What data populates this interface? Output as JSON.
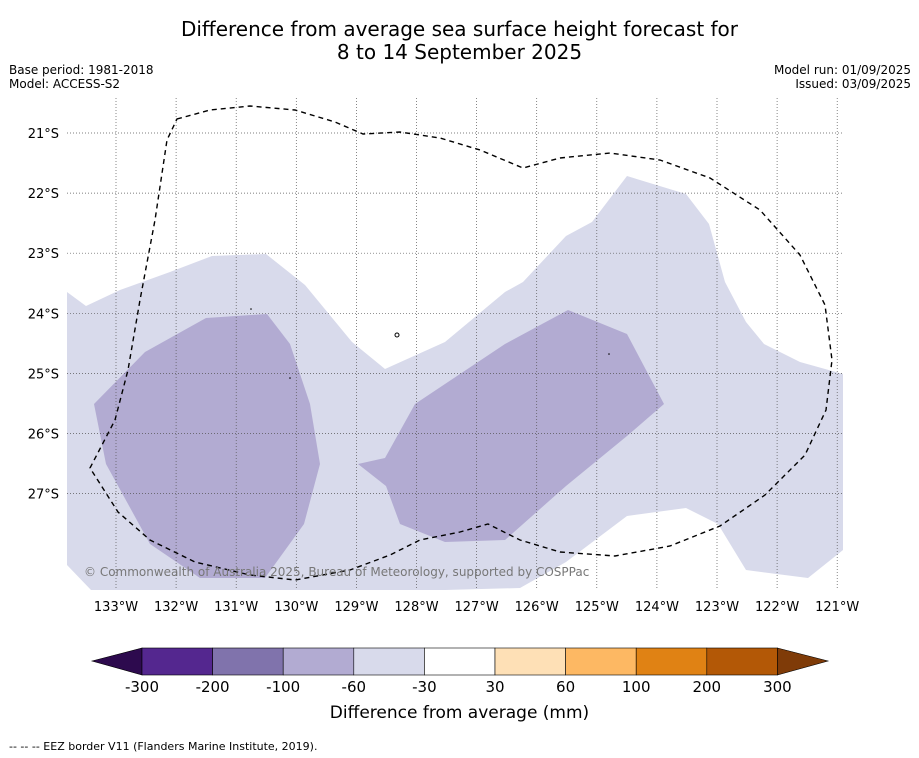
{
  "title_line1": "Difference from average sea surface height forecast for",
  "title_line2": "8 to 14 September 2025",
  "base_period": "Base period: 1981-2018",
  "model": "Model: ACCESS-S2",
  "model_run": "Model run: 01/09/2025",
  "issued": "Issued: 03/09/2025",
  "copyright": "© Commonwealth of Australia 2025, Bureau of Meteorology, supported by COSPPac",
  "footnote": "--  --  -- EEZ border V11 (Flanders Marine Institute, 2019).",
  "colorbar": {
    "label": "Difference from average (mm)",
    "ticks": [
      "-300",
      "-200",
      "-100",
      "-60",
      "-30",
      "30",
      "60",
      "100",
      "200",
      "300"
    ],
    "colors": [
      "#2d0a4e",
      "#54278f",
      "#8073ac",
      "#b2abd2",
      "#d8daeb",
      "#ffffff",
      "#fee0b6",
      "#fdb863",
      "#e08214",
      "#b35806",
      "#7f3b08"
    ]
  },
  "axes": {
    "lon_labels": [
      "133°W",
      "132°W",
      "131°W",
      "130°W",
      "129°W",
      "128°W",
      "127°W",
      "126°W",
      "125°W",
      "124°W",
      "123°W",
      "122°W",
      "121°W"
    ],
    "lat_labels": [
      "21°S",
      "22°S",
      "23°S",
      "24°S",
      "25°S",
      "26°S",
      "27°S"
    ]
  },
  "legend_classes_shown": [
    "-60 to -30",
    "-100 to -60"
  ]
}
